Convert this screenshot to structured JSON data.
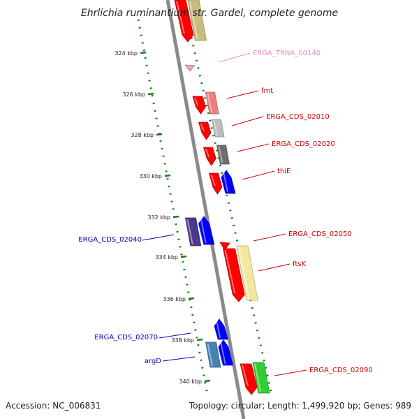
{
  "title": "Ehrlichia ruminantium str. Gardel, complete genome",
  "footer": {
    "accession": "Accession: NC_006831",
    "summary": "Topology: circular; Length: 1,499,920 bp; Genes: 989"
  },
  "colors": {
    "backbone": "#8a8a8a",
    "ruler": "#1a7a1a",
    "label_red": "#cc0000",
    "label_blue": "#0000bb",
    "label_pink": "#e98ec0"
  },
  "ruler_ticks": [
    "324 kbp",
    "326 kbp",
    "328 kbp",
    "330 kbp",
    "332 kbp",
    "334 kbp",
    "336 kbp",
    "338 kbp",
    "340 kbp"
  ],
  "features": [
    {
      "label": "",
      "row": "a",
      "color": "#ff0000"
    },
    {
      "label": "",
      "row": "b",
      "color": "#c8bd7d"
    },
    {
      "label": "ERGA_TRNA_00140",
      "row": "t",
      "color": "#f0a0c8",
      "label_color": "#e98ec0"
    },
    {
      "label": "",
      "row": "a",
      "color": "#ff0000"
    },
    {
      "label": "fmt",
      "row": "b",
      "color": "#ec8080",
      "label_color": "#cc0000"
    },
    {
      "label": "",
      "row": "a",
      "color": "#ff0000"
    },
    {
      "label": "ERGA_CDS_02010",
      "row": "b",
      "color": "#bdbdbd",
      "label_color": "#cc0000"
    },
    {
      "label": "",
      "row": "a",
      "color": "#ff0000"
    },
    {
      "label": "ERGA_CDS_02020",
      "row": "b",
      "color": "#6e6e6e",
      "label_color": "#cc0000"
    },
    {
      "label": "",
      "row": "a",
      "color": "#ff0000"
    },
    {
      "label": "thiE",
      "row": "b",
      "color": "#0000ff",
      "label_color": "#cc0000"
    },
    {
      "label": "ERGA_CDS_02040",
      "row": "l",
      "color": "#4a3a8c",
      "label_color": "#0000bb"
    },
    {
      "label": "",
      "row": "m",
      "color": "#0000ff"
    },
    {
      "label": "ERGA_CDS_02050",
      "row": "a",
      "color": "#ff0000",
      "label_color": "#cc0000"
    },
    {
      "label": "",
      "row": "a",
      "color": "#ff0000"
    },
    {
      "label": "ftsK",
      "row": "b",
      "color": "#f2e8a0",
      "label_color": "#cc0000"
    },
    {
      "label": "ERGA_CDS_02070",
      "row": "m",
      "color": "#0000ff",
      "label_color": "#0000bb"
    },
    {
      "label": "argD",
      "row": "l",
      "color": "#4682b4",
      "label_color": "#0000bb"
    },
    {
      "label": "",
      "row": "m",
      "color": "#0000ff"
    },
    {
      "label": "",
      "row": "a",
      "color": "#ff0000"
    },
    {
      "label": "ERGA_CDS_02090",
      "row": "b",
      "color": "#32cd32",
      "label_color": "#cc0000"
    }
  ]
}
